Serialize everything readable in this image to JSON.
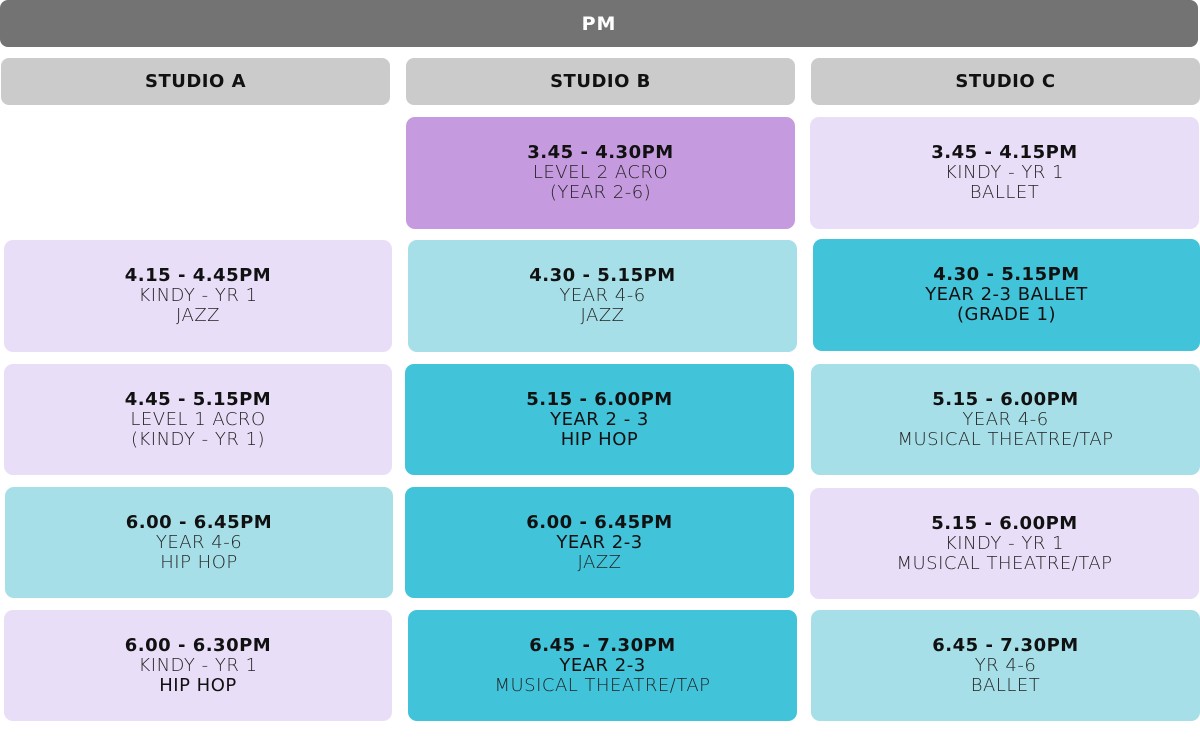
{
  "header": {
    "title": "PM"
  },
  "studios": [
    {
      "name": "STUDIO A"
    },
    {
      "name": "STUDIO B"
    },
    {
      "name": "STUDIO C"
    }
  ],
  "colors": {
    "header_bar": "#737373",
    "studio_header": "#cbcbcb",
    "lavender": "#e9def7",
    "purple": "#c69ade",
    "light_teal": "#a6dfe8",
    "teal": "#41c3da"
  },
  "classes": {
    "b1": {
      "time": "3.45 - 4.30PM",
      "line1": "LEVEL 2 ACRO",
      "line2": "(YEAR 2-6)",
      "color": "purple"
    },
    "c1": {
      "time": "3.45 - 4.15PM",
      "line1": "KINDY - YR 1",
      "line2": "BALLET",
      "color": "lavender"
    },
    "a2": {
      "time": "4.15 - 4.45PM",
      "line1": "KINDY - YR 1",
      "line2": "JAZZ",
      "color": "lavender"
    },
    "b2": {
      "time": "4.30 - 5.15PM",
      "line1": "YEAR 4-6",
      "line2": "JAZZ",
      "color": "light_teal"
    },
    "c2": {
      "time": "4.30 - 5.15PM",
      "line1": "YEAR 2-3 BALLET",
      "line2": "(GRADE 1)",
      "color": "teal"
    },
    "a3": {
      "time": "4.45 - 5.15PM",
      "line1": "LEVEL 1 ACRO",
      "line2": "(KINDY - YR 1)",
      "color": "lavender"
    },
    "b3": {
      "time": "5.15 - 6.00PM",
      "line1": "YEAR 2 - 3",
      "line2": "HIP HOP",
      "color": "teal"
    },
    "c3": {
      "time": "5.15 - 6.00PM",
      "line1": "YEAR 4-6",
      "line2": "MUSICAL THEATRE/TAP",
      "color": "light_teal"
    },
    "a4": {
      "time": "6.00 - 6.45PM",
      "line1": "YEAR 4-6",
      "line2": "HIP HOP",
      "color": "light_teal"
    },
    "b4": {
      "time": "6.00 - 6.45PM",
      "line1": "YEAR 2-3",
      "line2": "JAZZ",
      "color": "teal"
    },
    "c4": {
      "time": "5.15 - 6.00PM",
      "line1": "KINDY - YR 1",
      "line2": "MUSICAL THEATRE/TAP",
      "color": "lavender"
    },
    "a5": {
      "time": "6.00 - 6.30PM",
      "line1": "KINDY - YR 1",
      "line2": "HIP HOP",
      "color": "lavender"
    },
    "b5": {
      "time": "6.45 - 7.30PM",
      "line1": "YEAR 2-3",
      "line2": "MUSICAL THEATRE/TAP",
      "color": "teal"
    },
    "c5": {
      "time": "6.45 - 7.30PM",
      "line1": "YR 4-6",
      "line2": "BALLET",
      "color": "light_teal"
    }
  }
}
